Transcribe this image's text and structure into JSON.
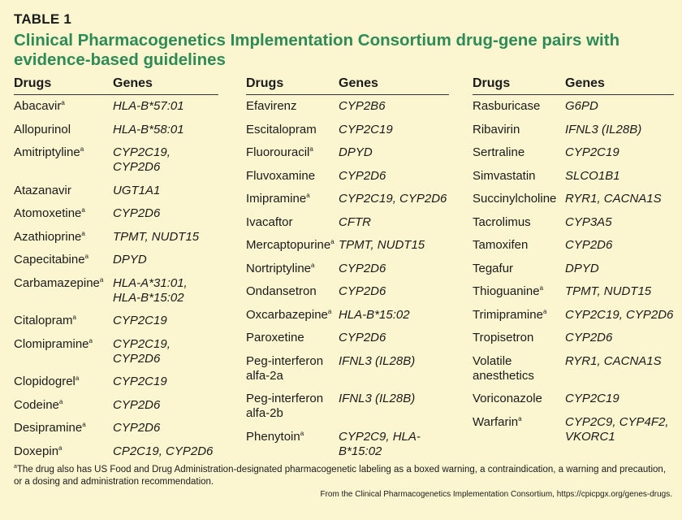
{
  "table_label": "TABLE 1",
  "title": "Clinical Pharmacogenetics Implementation Consortium drug-gene pairs with evidence-based guidelines",
  "headers": {
    "drugs": "Drugs",
    "genes": "Genes"
  },
  "footnote_marker": "a",
  "columns": [
    [
      {
        "drug": "Abacavir",
        "mark": "a",
        "genes": [
          "HLA-B*57:01"
        ]
      },
      {
        "drug": "Allopurinol",
        "mark": "",
        "genes": [
          "HLA-B*58:01"
        ]
      },
      {
        "drug": "Amitriptyline",
        "mark": "a",
        "genes": [
          "CYP2C19, CYP2D6"
        ]
      },
      {
        "drug": "Atazanavir",
        "mark": "",
        "genes": [
          "UGT1A1"
        ]
      },
      {
        "drug": "Atomoxetine",
        "mark": "a",
        "genes": [
          "CYP2D6"
        ]
      },
      {
        "drug": "Azathioprine",
        "mark": "a",
        "genes": [
          "TPMT, NUDT15"
        ]
      },
      {
        "drug": "Capecitabine",
        "mark": "a",
        "genes": [
          "DPYD"
        ]
      },
      {
        "drug": "Carbamazepine",
        "mark": "a",
        "genes": [
          "HLA-A*31:01,",
          "HLA-B*15:02"
        ]
      },
      {
        "drug": "Citalopram",
        "mark": "a",
        "genes": [
          "CYP2C19"
        ]
      },
      {
        "drug": "Clomipramine",
        "mark": "a",
        "genes": [
          "CYP2C19, CYP2D6"
        ]
      },
      {
        "drug": "Clopidogrel",
        "mark": "a",
        "genes": [
          "CYP2C19"
        ]
      },
      {
        "drug": "Codeine",
        "mark": "a",
        "genes": [
          "CYP2D6"
        ]
      },
      {
        "drug": "Desipramine",
        "mark": "a",
        "genes": [
          "CYP2D6"
        ]
      },
      {
        "drug": "Doxepin",
        "mark": "a",
        "genes": [
          "CP2C19, CYP2D6"
        ]
      }
    ],
    [
      {
        "drug": "Efavirenz",
        "mark": "",
        "genes": [
          "CYP2B6"
        ]
      },
      {
        "drug": "Escitalopram",
        "mark": "",
        "genes": [
          "CYP2C19"
        ]
      },
      {
        "drug": "Fluorouracil",
        "mark": "a",
        "genes": [
          "DPYD"
        ]
      },
      {
        "drug": "Fluvoxamine",
        "mark": "",
        "genes": [
          "CYP2D6"
        ]
      },
      {
        "drug": "Imipramine",
        "mark": "a",
        "genes": [
          "CYP2C19, CYP2D6"
        ]
      },
      {
        "drug": "Ivacaftor",
        "mark": "",
        "genes": [
          "CFTR"
        ]
      },
      {
        "drug": "Mercaptopurine",
        "mark": "a",
        "genes": [
          "TPMT, NUDT15"
        ]
      },
      {
        "drug": "Nortriptyline",
        "mark": "a",
        "genes": [
          "CYP2D6"
        ]
      },
      {
        "drug": "Ondansetron",
        "mark": "",
        "genes": [
          "CYP2D6"
        ]
      },
      {
        "drug": "Oxcarbazepine",
        "mark": "a",
        "genes": [
          "HLA-B*15:02"
        ]
      },
      {
        "drug": "Paroxetine",
        "mark": "",
        "genes": [
          "CYP2D6"
        ]
      },
      {
        "drug": "Peg-interferon alfa-2a",
        "mark": "",
        "genes": [
          "IFNL3 (IL28B)"
        ]
      },
      {
        "drug": "Peg-interferon alfa-2b",
        "mark": "",
        "genes": [
          "IFNL3 (IL28B)"
        ]
      },
      {
        "drug": "Phenytoin",
        "mark": "a",
        "genes": [
          "CYP2C9, HLA-B*15:02"
        ]
      }
    ],
    [
      {
        "drug": "Rasburicase",
        "mark": "",
        "genes": [
          "G6PD"
        ]
      },
      {
        "drug": "Ribavirin",
        "mark": "",
        "genes": [
          "IFNL3 (IL28B)"
        ]
      },
      {
        "drug": "Sertraline",
        "mark": "",
        "genes": [
          "CYP2C19"
        ]
      },
      {
        "drug": "Simvastatin",
        "mark": "",
        "genes": [
          "SLCO1B1"
        ]
      },
      {
        "drug": "Succinylcholine",
        "mark": "",
        "genes": [
          "RYR1, CACNA1S"
        ]
      },
      {
        "drug": "Tacrolimus",
        "mark": "",
        "genes": [
          "CYP3A5"
        ]
      },
      {
        "drug": "Tamoxifen",
        "mark": "",
        "genes": [
          "CYP2D6"
        ]
      },
      {
        "drug": "Tegafur",
        "mark": "",
        "genes": [
          "DPYD"
        ]
      },
      {
        "drug": "Thioguanine",
        "mark": "a",
        "genes": [
          "TPMT, NUDT15"
        ]
      },
      {
        "drug": "Trimipramine",
        "mark": "a",
        "genes": [
          "CYP2C19, CYP2D6"
        ]
      },
      {
        "drug": "Tropisetron",
        "mark": "",
        "genes": [
          "CYP2D6"
        ]
      },
      {
        "drug": "Volatile anesthetics",
        "mark": "",
        "genes": [
          "RYR1, CACNA1S"
        ]
      },
      {
        "drug": "Voriconazole",
        "mark": "",
        "genes": [
          "CYP2C19"
        ]
      },
      {
        "drug": "Warfarin",
        "mark": "a",
        "genes": [
          "CYP2C9, CYP4F2,",
          "VKORC1"
        ]
      }
    ]
  ],
  "footnote": "The drug also has US Food and Drug Administration-designated pharmacogenetic labeling as a boxed warning, a contraindication, a warning and precaution, or a dosing and administration recommendation.",
  "source": "From the Clinical Pharmacogenetics Implementation Consortium, https://cpicpgx.org/genes-drugs."
}
